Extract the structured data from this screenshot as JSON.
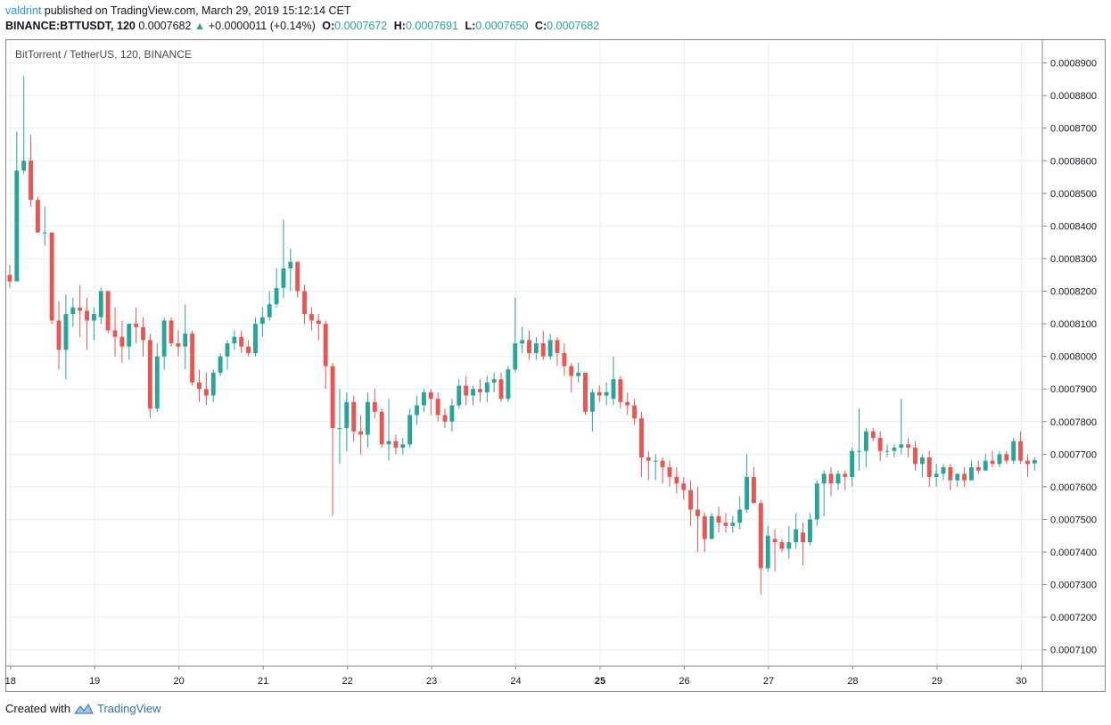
{
  "header": {
    "author": "valdrint",
    "published_text": "published on TradingView.com, March 29, 2019 15:12:14 CET",
    "symbol_line": "BINANCE:BTTUSDT, 120",
    "last_price": "0.0007682",
    "change_arrow": "▲",
    "change": "+0.0000011 (+0.14%)",
    "o_label": "O:",
    "o_value": "0.0007672",
    "h_label": "H:",
    "h_value": "0.0007691",
    "l_label": "L:",
    "l_value": "0.0007650",
    "c_label": "C:",
    "c_value": "0.0007682"
  },
  "footer": {
    "created_with": "Created with",
    "brand": "TradingView"
  },
  "colors": {
    "up": "#26a69a",
    "down": "#ef5350",
    "grid": "#e6eff4",
    "axis": "#8a8a8a",
    "brand": "#2196f3"
  },
  "chart_data": {
    "type": "candlestick",
    "title": "BitTorrent / TetherUS, 120, BINANCE",
    "x_tick_labels": [
      "18",
      "19",
      "20",
      "21",
      "22",
      "23",
      "24",
      "25",
      "26",
      "27",
      "28",
      "29",
      "30"
    ],
    "y_tick_labels": [
      "0.0008900",
      "0.0008800",
      "0.0008700",
      "0.0008600",
      "0.0008500",
      "0.0008400",
      "0.0008300",
      "0.0008200",
      "0.0008100",
      "0.0008000",
      "0.0007900",
      "0.0007800",
      "0.0007700",
      "0.0007600",
      "0.0007500",
      "0.0007400",
      "0.0007300",
      "0.0007200",
      "0.0007100"
    ],
    "ylim": [
      0.000705,
      0.000897
    ],
    "x_range_days": [
      17.95,
      30.25
    ],
    "bold_x_tick": "25",
    "grid": true,
    "candles": [
      [
        0.000825,
        0.000828,
        0.000821,
        0.000823
      ],
      [
        0.000823,
        0.000869,
        0.000823,
        0.000857
      ],
      [
        0.000857,
        0.000886,
        0.000856,
        0.00086
      ],
      [
        0.00086,
        0.000868,
        0.000846,
        0.000848
      ],
      [
        0.000848,
        0.000849,
        0.000838,
        0.000838
      ],
      [
        0.000838,
        0.000846,
        0.000834,
        0.000838
      ],
      [
        0.000838,
        0.000838,
        0.00081,
        0.000811
      ],
      [
        0.000811,
        0.000817,
        0.000796,
        0.000802
      ],
      [
        0.000802,
        0.000819,
        0.000793,
        0.000813
      ],
      [
        0.000813,
        0.000818,
        0.000809,
        0.000815
      ],
      [
        0.000815,
        0.000822,
        0.000806,
        0.000814
      ],
      [
        0.000814,
        0.000818,
        0.000802,
        0.000811
      ],
      [
        0.000811,
        0.000815,
        0.000805,
        0.000813
      ],
      [
        0.000812,
        0.000821,
        0.00081,
        0.00082
      ],
      [
        0.00082,
        0.00082,
        0.000807,
        0.000808
      ],
      [
        0.000808,
        0.000815,
        0.0008,
        0.000806
      ],
      [
        0.000806,
        0.000811,
        0.000798,
        0.000803
      ],
      [
        0.000803,
        0.00081,
        0.000799,
        0.00081
      ],
      [
        0.00081,
        0.000815,
        0.000804,
        0.000809
      ],
      [
        0.000809,
        0.000812,
        0.0008,
        0.000805
      ],
      [
        0.000805,
        0.000807,
        0.000781,
        0.000784
      ],
      [
        0.000784,
        0.000804,
        0.000783,
        0.0008
      ],
      [
        0.0008,
        0.000812,
        0.000796,
        0.000811
      ],
      [
        0.000811,
        0.000812,
        0.000803,
        0.000804
      ],
      [
        0.000804,
        0.000808,
        0.0008,
        0.000803
      ],
      [
        0.000803,
        0.000816,
        0.000796,
        0.000807
      ],
      [
        0.000807,
        0.000808,
        0.000791,
        0.000792
      ],
      [
        0.000792,
        0.000796,
        0.000786,
        0.00079
      ],
      [
        0.00079,
        0.000795,
        0.000785,
        0.000788
      ],
      [
        0.000788,
        0.000796,
        0.000786,
        0.000795
      ],
      [
        0.000795,
        0.000801,
        0.000794,
        0.0008
      ],
      [
        0.0008,
        0.000805,
        0.000796,
        0.000804
      ],
      [
        0.000804,
        0.000808,
        0.000802,
        0.000806
      ],
      [
        0.000806,
        0.000808,
        0.000801,
        0.000803
      ],
      [
        0.000803,
        0.000805,
        0.0008,
        0.000801
      ],
      [
        0.000801,
        0.000812,
        0.0008,
        0.00081
      ],
      [
        0.00081,
        0.000815,
        0.000806,
        0.000812
      ],
      [
        0.000812,
        0.00082,
        0.000811,
        0.000816
      ],
      [
        0.000816,
        0.000827,
        0.000815,
        0.000821
      ],
      [
        0.000821,
        0.000842,
        0.000818,
        0.000827
      ],
      [
        0.000827,
        0.000833,
        0.00082,
        0.000829
      ],
      [
        0.000829,
        0.000829,
        0.000818,
        0.00082
      ],
      [
        0.00082,
        0.000822,
        0.00081,
        0.000813
      ],
      [
        0.000813,
        0.000815,
        0.000808,
        0.000811
      ],
      [
        0.000811,
        0.000813,
        0.000805,
        0.00081
      ],
      [
        0.00081,
        0.000811,
        0.00079,
        0.000797
      ],
      [
        0.000797,
        0.000798,
        0.000751,
        0.000778
      ],
      [
        0.000778,
        0.00079,
        0.000767,
        0.000778
      ],
      [
        0.000778,
        0.000789,
        0.000771,
        0.000786
      ],
      [
        0.000786,
        0.000788,
        0.000774,
        0.000777
      ],
      [
        0.000777,
        0.000782,
        0.00077,
        0.000776
      ],
      [
        0.000776,
        0.000789,
        0.000772,
        0.000786
      ],
      [
        0.000786,
        0.00079,
        0.000781,
        0.000783
      ],
      [
        0.000783,
        0.000784,
        0.000772,
        0.000773
      ],
      [
        0.000773,
        0.000787,
        0.000768,
        0.000774
      ],
      [
        0.000774,
        0.000776,
        0.00077,
        0.000772
      ],
      [
        0.000772,
        0.000775,
        0.00077,
        0.000773
      ],
      [
        0.000773,
        0.000784,
        0.000772,
        0.000782
      ],
      [
        0.000782,
        0.000788,
        0.000779,
        0.000785
      ],
      [
        0.000785,
        0.00079,
        0.000783,
        0.000789
      ],
      [
        0.000789,
        0.00079,
        0.000782,
        0.000787
      ],
      [
        0.000787,
        0.000789,
        0.00078,
        0.000782
      ],
      [
        0.000782,
        0.000784,
        0.000778,
        0.00078
      ],
      [
        0.00078,
        0.000787,
        0.000777,
        0.000785
      ],
      [
        0.000785,
        0.000793,
        0.000784,
        0.000791
      ],
      [
        0.000791,
        0.000794,
        0.000785,
        0.000788
      ],
      [
        0.000788,
        0.000791,
        0.000785,
        0.00079
      ],
      [
        0.00079,
        0.000793,
        0.000786,
        0.000789
      ],
      [
        0.000789,
        0.000794,
        0.000786,
        0.000792
      ],
      [
        0.000792,
        0.000795,
        0.000789,
        0.000793
      ],
      [
        0.000793,
        0.000795,
        0.000786,
        0.000787
      ],
      [
        0.000787,
        0.000797,
        0.000786,
        0.000796
      ],
      [
        0.000796,
        0.000818,
        0.000795,
        0.000804
      ],
      [
        0.000804,
        0.000809,
        0.000801,
        0.000805
      ],
      [
        0.000805,
        0.000808,
        0.000799,
        0.000801
      ],
      [
        0.000801,
        0.000806,
        0.000799,
        0.000804
      ],
      [
        0.000804,
        0.000808,
        0.000799,
        0.0008
      ],
      [
        0.0008,
        0.000807,
        0.000799,
        0.000805
      ],
      [
        0.000805,
        0.000806,
        0.000797,
        0.000801
      ],
      [
        0.000801,
        0.000804,
        0.000794,
        0.000797
      ],
      [
        0.000797,
        0.000798,
        0.000789,
        0.000794
      ],
      [
        0.000794,
        0.000798,
        0.000792,
        0.000795
      ],
      [
        0.000795,
        0.000795,
        0.000782,
        0.000783
      ],
      [
        0.000783,
        0.00079,
        0.000777,
        0.000789
      ],
      [
        0.000789,
        0.000791,
        0.000786,
        0.000788
      ],
      [
        0.000788,
        0.000792,
        0.000785,
        0.000789
      ],
      [
        0.000787,
        0.0008,
        0.000785,
        0.000793
      ],
      [
        0.000793,
        0.000794,
        0.000784,
        0.000786
      ],
      [
        0.000786,
        0.000789,
        0.000782,
        0.000785
      ],
      [
        0.000785,
        0.000787,
        0.000779,
        0.000781
      ],
      [
        0.000781,
        0.000783,
        0.000763,
        0.000769
      ],
      [
        0.000769,
        0.000771,
        0.000762,
        0.000768
      ],
      [
        0.000768,
        0.00077,
        0.000762,
        0.000768
      ],
      [
        0.000768,
        0.000769,
        0.000761,
        0.000766
      ],
      [
        0.000766,
        0.000768,
        0.00076,
        0.000763
      ],
      [
        0.000763,
        0.000766,
        0.000758,
        0.000761
      ],
      [
        0.000761,
        0.000763,
        0.000756,
        0.000759
      ],
      [
        0.000759,
        0.000762,
        0.000748,
        0.000753
      ],
      [
        0.000753,
        0.00076,
        0.00074,
        0.000751
      ],
      [
        0.000751,
        0.000752,
        0.00074,
        0.000744
      ],
      [
        0.000744,
        0.000752,
        0.000744,
        0.000751
      ],
      [
        0.000751,
        0.000754,
        0.000746,
        0.000749
      ],
      [
        0.000749,
        0.000752,
        0.000746,
        0.000748
      ],
      [
        0.000748,
        0.000751,
        0.000746,
        0.000749
      ],
      [
        0.000749,
        0.000757,
        0.000747,
        0.000753
      ],
      [
        0.000753,
        0.00077,
        0.000752,
        0.000763
      ],
      [
        0.000763,
        0.000766,
        0.000755,
        0.000755
      ],
      [
        0.000755,
        0.000756,
        0.000727,
        0.000735
      ],
      [
        0.000735,
        0.000748,
        0.000734,
        0.000745
      ],
      [
        0.000744,
        0.000747,
        0.000734,
        0.000743
      ],
      [
        0.000743,
        0.000744,
        0.00074,
        0.000741
      ],
      [
        0.000741,
        0.000748,
        0.000738,
        0.000743
      ],
      [
        0.000743,
        0.000752,
        0.000741,
        0.000747
      ],
      [
        0.000746,
        0.000749,
        0.000736,
        0.000743
      ],
      [
        0.000743,
        0.000752,
        0.000742,
        0.00075
      ],
      [
        0.00075,
        0.000762,
        0.000748,
        0.000761
      ],
      [
        0.000761,
        0.000765,
        0.000751,
        0.000764
      ],
      [
        0.000764,
        0.000766,
        0.000757,
        0.000761
      ],
      [
        0.000761,
        0.000765,
        0.000759,
        0.000764
      ],
      [
        0.000764,
        0.000765,
        0.000759,
        0.000763
      ],
      [
        0.000763,
        0.000772,
        0.00076,
        0.000771
      ],
      [
        0.000771,
        0.000784,
        0.000765,
        0.000771
      ],
      [
        0.000771,
        0.000778,
        0.000766,
        0.000777
      ],
      [
        0.000777,
        0.000778,
        0.000774,
        0.000775
      ],
      [
        0.000775,
        0.000777,
        0.000768,
        0.000771
      ],
      [
        0.000771,
        0.000773,
        0.000769,
        0.000771
      ],
      [
        0.000771,
        0.000773,
        0.000769,
        0.000772
      ],
      [
        0.000772,
        0.000787,
        0.00077,
        0.000773
      ],
      [
        0.000773,
        0.000775,
        0.000769,
        0.000772
      ],
      [
        0.000772,
        0.000774,
        0.000765,
        0.000767
      ],
      [
        0.000767,
        0.00077,
        0.000763,
        0.000769
      ],
      [
        0.000769,
        0.000771,
        0.00076,
        0.000763
      ],
      [
        0.000763,
        0.000767,
        0.00076,
        0.000764
      ],
      [
        0.000764,
        0.000767,
        0.000762,
        0.000766
      ],
      [
        0.000766,
        0.000767,
        0.000759,
        0.000762
      ],
      [
        0.000762,
        0.000764,
        0.00076,
        0.000764
      ],
      [
        0.000764,
        0.000766,
        0.00076,
        0.000762
      ],
      [
        0.000762,
        0.000768,
        0.000762,
        0.000766
      ],
      [
        0.000766,
        0.000768,
        0.000764,
        0.000765
      ],
      [
        0.000765,
        0.00077,
        0.000765,
        0.000768
      ],
      [
        0.000768,
        0.000771,
        0.000766,
        0.000767
      ],
      [
        0.000767,
        0.000771,
        0.000766,
        0.00077
      ],
      [
        0.00077,
        0.000771,
        0.000767,
        0.000768
      ],
      [
        0.000768,
        0.000775,
        0.000767,
        0.000774
      ],
      [
        0.000774,
        0.000777,
        0.000767,
        0.000768
      ],
      [
        0.000768,
        0.00077,
        0.000763,
        0.000767
      ],
      [
        0.0007672,
        0.0007691,
        0.000765,
        0.0007682
      ]
    ]
  }
}
